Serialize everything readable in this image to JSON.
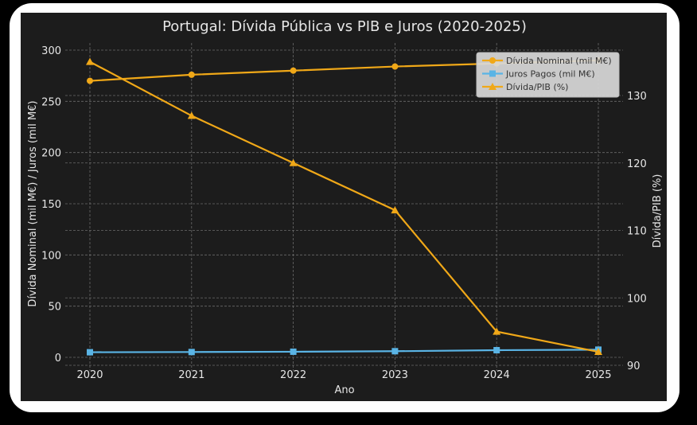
{
  "chart_data": {
    "type": "line",
    "title": "Portugal: Dívida Pública vs PIB e Juros (2020-2025)",
    "xlabel": "Ano",
    "ylabel": "Dívida Nominal (mil M€) / Juros (mil M€)",
    "y2label": "Dívida/PIB (%)",
    "x": [
      2020,
      2021,
      2022,
      2023,
      2024,
      2025
    ],
    "x_tick_labels": [
      "2020",
      "2021",
      "2022",
      "2023",
      "2024",
      "2025"
    ],
    "ylim": [
      -5,
      305
    ],
    "y_ticks": [
      0,
      50,
      100,
      150,
      200,
      250,
      300
    ],
    "y2lim": [
      90,
      136
    ],
    "y2_ticks": [
      90,
      100,
      110,
      120,
      130
    ],
    "grid": true,
    "legend_position": "top-right",
    "series": [
      {
        "name": "Dívida Nominal (mil M€)",
        "axis": "left",
        "marker": "circle",
        "color": "#f0a818",
        "values": [
          270,
          276,
          280,
          284,
          287,
          290
        ]
      },
      {
        "name": "Juros Pagos (mil M€)",
        "axis": "left",
        "marker": "square",
        "color": "#5ab4e5",
        "values": [
          5.0,
          5.2,
          5.5,
          6.0,
          7.0,
          7.5
        ]
      },
      {
        "name": "Dívida/PIB (%)",
        "axis": "right",
        "marker": "triangle",
        "color": "#f0a818",
        "values": [
          135,
          127,
          120,
          113,
          95,
          92
        ]
      }
    ]
  }
}
